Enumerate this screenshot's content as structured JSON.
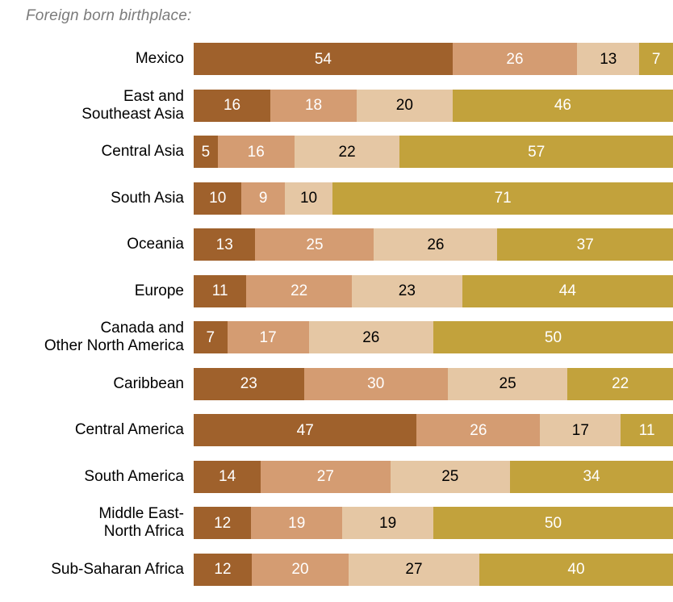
{
  "chart_data": {
    "type": "bar",
    "orientation": "horizontal",
    "stacked": true,
    "title": "Foreign born birthplace:",
    "xlim": [
      0,
      100
    ],
    "grid": false,
    "legend": "none",
    "categories": [
      "Mexico",
      "East and\nSoutheast Asia",
      "Central Asia",
      "South Asia",
      "Oceania",
      "Europe",
      "Canada and\nOther North America",
      "Caribbean",
      "Central America",
      "South America",
      "Middle East-\nNorth Africa",
      "Sub-Saharan Africa"
    ],
    "series": [
      {
        "name": "segment-1-dark-brown",
        "color": "#9f612c",
        "value_text_color": "#ffffff",
        "values": [
          54,
          16,
          5,
          10,
          13,
          11,
          7,
          23,
          47,
          14,
          12,
          12
        ]
      },
      {
        "name": "segment-2-medium-tan",
        "color": "#d49c72",
        "value_text_color": "#ffffff",
        "values": [
          26,
          18,
          16,
          9,
          25,
          22,
          17,
          30,
          26,
          27,
          19,
          20
        ]
      },
      {
        "name": "segment-3-light-tan",
        "color": "#e5c7a4",
        "value_text_color": "#000000",
        "values": [
          13,
          20,
          22,
          10,
          26,
          23,
          26,
          25,
          17,
          25,
          19,
          27
        ]
      },
      {
        "name": "segment-4-gold",
        "color": "#c2a23c",
        "value_text_color": "#ffffff",
        "values": [
          7,
          46,
          57,
          71,
          37,
          44,
          50,
          22,
          11,
          34,
          50,
          40
        ]
      }
    ]
  }
}
